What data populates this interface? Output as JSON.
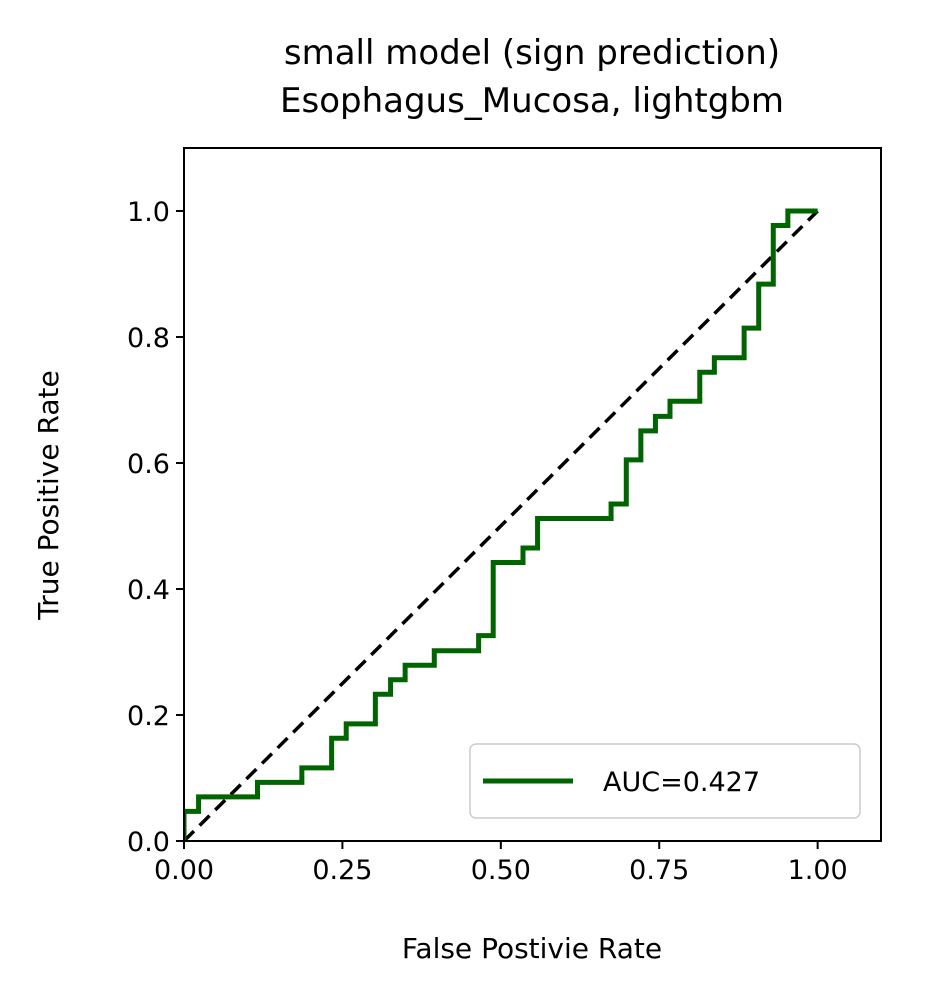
{
  "chart_data": {
    "type": "line",
    "title": [
      "small model (sign prediction)",
      "Esophagus_Mucosa, lightgbm"
    ],
    "xlabel": "False Postivie Rate",
    "ylabel": "True Positive Rate",
    "xlim": [
      0.0,
      1.1
    ],
    "ylim": [
      0.0,
      1.1
    ],
    "xticks": [
      0.0,
      0.25,
      0.5,
      0.75,
      1.0
    ],
    "xtick_labels": [
      "0.00",
      "0.25",
      "0.50",
      "0.75",
      "1.00"
    ],
    "yticks": [
      0.0,
      0.2,
      0.4,
      0.6,
      0.8,
      1.0
    ],
    "ytick_labels": [
      "0.0",
      "0.2",
      "0.4",
      "0.6",
      "0.8",
      "1.0"
    ],
    "grid": false,
    "legend_position": "lower-right",
    "series": [
      {
        "name": "AUC=0.427",
        "color": "#006400",
        "style": "solid",
        "steps": true,
        "x": [
          0.0,
          0.0,
          0.023,
          0.023,
          0.116,
          0.116,
          0.186,
          0.186,
          0.233,
          0.233,
          0.256,
          0.256,
          0.302,
          0.302,
          0.326,
          0.326,
          0.349,
          0.349,
          0.395,
          0.395,
          0.465,
          0.465,
          0.488,
          0.488,
          0.535,
          0.535,
          0.558,
          0.558,
          0.674,
          0.674,
          0.698,
          0.698,
          0.721,
          0.721,
          0.744,
          0.744,
          0.767,
          0.767,
          0.814,
          0.814,
          0.837,
          0.837,
          0.884,
          0.884,
          0.907,
          0.907,
          0.93,
          0.93,
          0.953,
          0.953,
          1.0
        ],
        "y": [
          0.0,
          0.047,
          0.047,
          0.07,
          0.07,
          0.093,
          0.093,
          0.116,
          0.116,
          0.163,
          0.163,
          0.186,
          0.186,
          0.233,
          0.233,
          0.256,
          0.256,
          0.279,
          0.279,
          0.302,
          0.302,
          0.326,
          0.326,
          0.442,
          0.442,
          0.465,
          0.465,
          0.512,
          0.512,
          0.535,
          0.535,
          0.605,
          0.605,
          0.651,
          0.651,
          0.674,
          0.674,
          0.698,
          0.698,
          0.744,
          0.744,
          0.767,
          0.767,
          0.814,
          0.814,
          0.884,
          0.884,
          0.977,
          0.977,
          1.0,
          1.0
        ]
      },
      {
        "name": "",
        "color": "#000000",
        "style": "dashed",
        "x": [
          0.0,
          1.0
        ],
        "y": [
          0.0,
          1.0
        ]
      }
    ],
    "legend": [
      {
        "label": "AUC=0.427",
        "color": "#006400"
      }
    ]
  }
}
